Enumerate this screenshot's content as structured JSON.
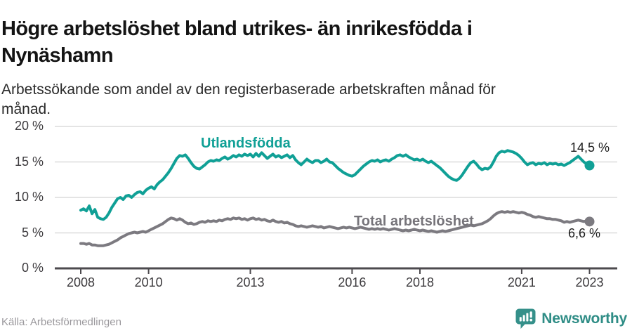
{
  "header": {
    "title": "Högre arbetslöshet bland utrikes- än inrikesfödda i\nNynäshamn",
    "subtitle": "Arbetssökande som andel av den registerbaserade arbetskraften månad för\nmånad."
  },
  "footer": {
    "source": "Källa: Arbetsförmedlingen",
    "brand": "Newsworthy"
  },
  "colors": {
    "series_foreign": "#10a096",
    "series_total": "#7c7a80",
    "grid": "#dcdcdc",
    "axis": "#4c4a4e",
    "tick_text": "#3d3b3e",
    "brand_teal": "#35908a"
  },
  "chart_data": {
    "type": "line",
    "title": "Högre arbetslöshet bland utrikes- än inrikesfödda i Nynäshamn",
    "subtitle": "Arbetssökande som andel av den registerbaserade arbetskraften månad för månad.",
    "x_start_year": 2008,
    "points_per_year": 12,
    "xlim": [
      2007.2,
      2023.8
    ],
    "ylim": [
      0,
      20
    ],
    "grid": true,
    "yticks": [
      {
        "label": "0 %",
        "value": 0
      },
      {
        "label": "5 %",
        "value": 5
      },
      {
        "label": "10 %",
        "value": 10
      },
      {
        "label": "15 %",
        "value": 15
      },
      {
        "label": "20 %",
        "value": 20
      }
    ],
    "xticks": [
      {
        "label": "2008",
        "year": 2008
      },
      {
        "label": "2010",
        "year": 2010
      },
      {
        "label": "2013",
        "year": 2013
      },
      {
        "label": "2016",
        "year": 2016
      },
      {
        "label": "2018",
        "year": 2018
      },
      {
        "label": "2021",
        "year": 2021
      },
      {
        "label": "2023",
        "year": 2023
      }
    ],
    "series": [
      {
        "name": "Utlandsfödda",
        "color": "#10a096",
        "end_label": "14,5 %",
        "end_value": 14.5,
        "values": [
          8.2,
          8.4,
          8.1,
          8.8,
          7.7,
          8.3,
          7.2,
          7.0,
          6.9,
          7.2,
          7.8,
          8.6,
          9.2,
          9.8,
          10.0,
          9.7,
          10.2,
          10.3,
          10.0,
          10.4,
          10.7,
          10.8,
          10.5,
          11.0,
          11.3,
          11.5,
          11.2,
          11.8,
          12.2,
          12.5,
          13.0,
          13.5,
          14.1,
          14.8,
          15.5,
          15.9,
          15.8,
          16.0,
          15.5,
          14.9,
          14.4,
          14.1,
          14.0,
          14.3,
          14.6,
          15.0,
          15.2,
          15.1,
          15.3,
          15.2,
          15.5,
          15.7,
          15.4,
          15.6,
          15.9,
          15.7,
          16.0,
          15.8,
          16.1,
          15.9,
          16.1,
          15.7,
          16.2,
          15.8,
          16.3,
          15.9,
          15.5,
          15.8,
          16.1,
          15.7,
          15.9,
          15.6,
          15.8,
          16.0,
          15.6,
          15.9,
          15.3,
          14.9,
          14.6,
          15.0,
          15.4,
          15.1,
          14.9,
          15.2,
          15.2,
          14.9,
          15.1,
          15.4,
          15.0,
          14.9,
          14.5,
          14.1,
          13.8,
          13.5,
          13.3,
          13.1,
          13.0,
          13.2,
          13.6,
          14.0,
          14.4,
          14.7,
          15.0,
          15.2,
          15.1,
          15.3,
          15.0,
          15.2,
          15.3,
          15.1,
          15.4,
          15.6,
          15.9,
          16.0,
          15.8,
          16.0,
          15.7,
          15.5,
          15.3,
          15.4,
          15.2,
          15.4,
          15.1,
          14.9,
          15.1,
          14.8,
          14.5,
          14.2,
          13.8,
          13.4,
          13.0,
          12.7,
          12.5,
          12.4,
          12.7,
          13.2,
          13.8,
          14.4,
          14.9,
          15.1,
          14.7,
          14.2,
          13.9,
          14.1,
          14.0,
          14.3,
          15.0,
          15.8,
          16.3,
          16.5,
          16.4,
          16.6,
          16.5,
          16.4,
          16.2,
          15.9,
          15.5,
          15.0,
          14.6,
          14.8,
          14.9,
          14.6,
          14.8,
          14.7,
          14.9,
          14.6,
          14.8,
          14.7,
          14.8,
          14.6,
          14.7,
          14.5,
          14.7,
          14.9,
          15.2,
          15.5,
          15.8,
          15.4,
          15.0,
          14.7,
          14.5
        ]
      },
      {
        "name": "Total arbetslöshet",
        "color": "#7c7a80",
        "end_label": "6,6 %",
        "end_value": 6.6,
        "values": [
          3.5,
          3.5,
          3.4,
          3.5,
          3.3,
          3.3,
          3.2,
          3.2,
          3.2,
          3.3,
          3.4,
          3.6,
          3.8,
          4.0,
          4.3,
          4.5,
          4.7,
          4.9,
          5.0,
          5.1,
          5.0,
          5.1,
          5.2,
          5.1,
          5.3,
          5.5,
          5.7,
          5.9,
          6.1,
          6.3,
          6.6,
          6.9,
          7.1,
          7.0,
          6.8,
          7.0,
          6.8,
          6.5,
          6.3,
          6.4,
          6.2,
          6.3,
          6.5,
          6.6,
          6.5,
          6.7,
          6.6,
          6.7,
          6.6,
          6.8,
          6.7,
          6.9,
          7.0,
          6.9,
          7.1,
          7.0,
          7.1,
          6.9,
          7.0,
          6.8,
          7.0,
          7.1,
          6.9,
          7.0,
          6.8,
          6.9,
          6.7,
          6.6,
          6.8,
          6.6,
          6.5,
          6.6,
          6.4,
          6.5,
          6.3,
          6.2,
          6.0,
          5.9,
          6.0,
          5.9,
          5.8,
          5.9,
          6.0,
          5.9,
          5.8,
          5.9,
          5.7,
          5.8,
          5.9,
          5.8,
          5.7,
          5.6,
          5.7,
          5.8,
          5.7,
          5.8,
          5.7,
          5.6,
          5.7,
          5.8,
          5.7,
          5.6,
          5.5,
          5.6,
          5.5,
          5.6,
          5.5,
          5.6,
          5.5,
          5.4,
          5.5,
          5.6,
          5.5,
          5.4,
          5.3,
          5.4,
          5.3,
          5.4,
          5.5,
          5.4,
          5.3,
          5.4,
          5.3,
          5.2,
          5.3,
          5.2,
          5.1,
          5.2,
          5.3,
          5.2,
          5.3,
          5.4,
          5.5,
          5.6,
          5.7,
          5.8,
          5.9,
          6.0,
          6.1,
          6.0,
          6.1,
          6.2,
          6.3,
          6.5,
          6.7,
          7.0,
          7.4,
          7.7,
          7.9,
          8.0,
          7.9,
          8.0,
          7.9,
          8.0,
          7.9,
          7.8,
          7.9,
          7.8,
          7.6,
          7.5,
          7.3,
          7.2,
          7.3,
          7.2,
          7.1,
          7.0,
          7.0,
          6.9,
          6.9,
          6.8,
          6.7,
          6.5,
          6.6,
          6.5,
          6.6,
          6.7,
          6.8,
          6.7,
          6.6,
          6.7,
          6.6
        ]
      }
    ]
  }
}
